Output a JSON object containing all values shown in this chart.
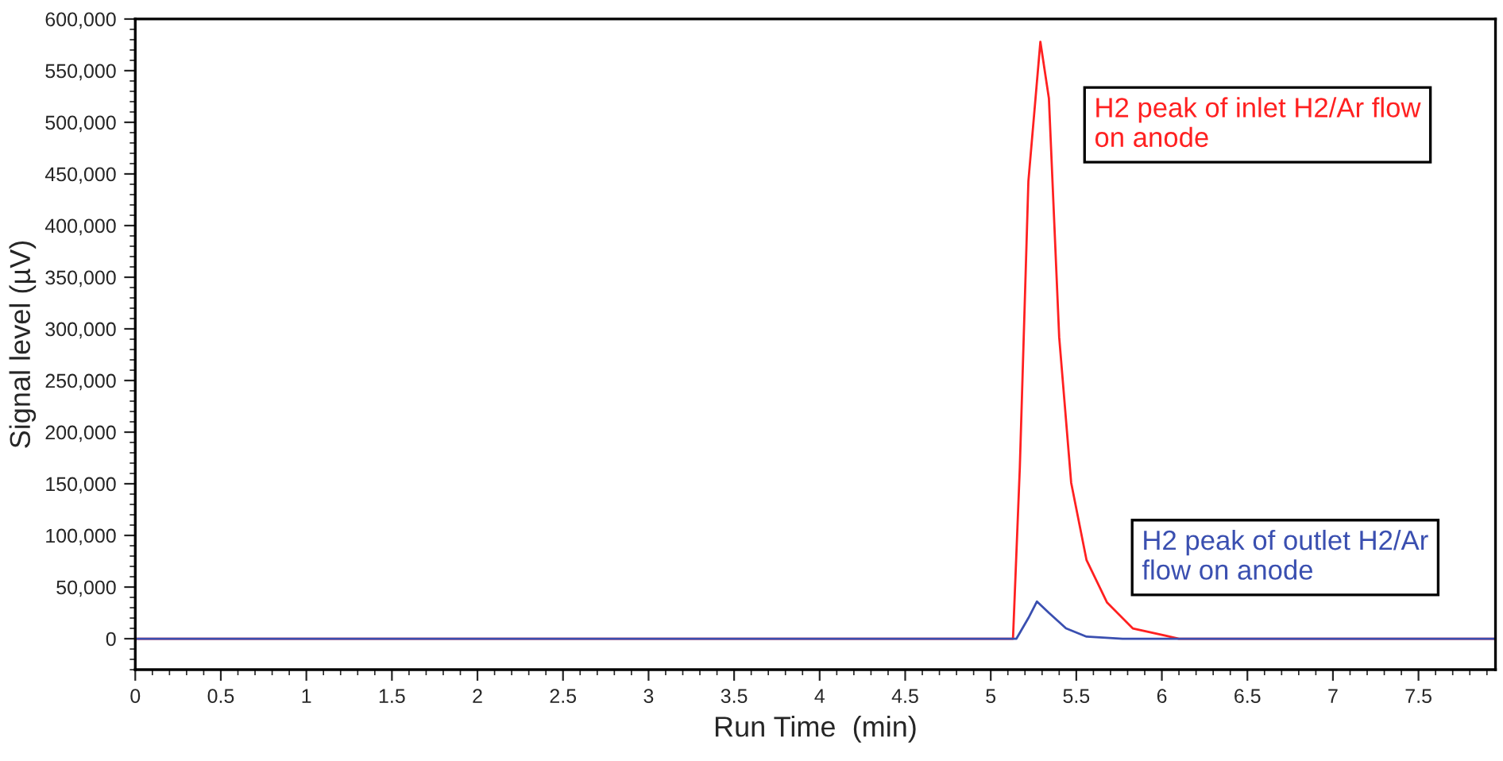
{
  "chart_data": {
    "type": "line",
    "xlabel": "Run Time  (min)",
    "ylabel": "Signal level (µV)",
    "xlim": [
      0,
      7.95
    ],
    "xticks": [
      0,
      0.5,
      1,
      1.5,
      2,
      2.5,
      3,
      3.5,
      4,
      4.5,
      5,
      5.5,
      6,
      6.5,
      7,
      7.5
    ],
    "ylim": [
      -30000,
      600000
    ],
    "yticks": [
      {
        "value": 0,
        "label": "0"
      },
      {
        "value": 50000,
        "label": "50,000"
      },
      {
        "value": 100000,
        "label": "100,000"
      },
      {
        "value": 150000,
        "label": "150,000"
      },
      {
        "value": 200000,
        "label": "200,000"
      },
      {
        "value": 250000,
        "label": "250,000"
      },
      {
        "value": 300000,
        "label": "300,000"
      },
      {
        "value": 350000,
        "label": "350,000"
      },
      {
        "value": 400000,
        "label": "400,000"
      },
      {
        "value": 450000,
        "label": "450,000"
      },
      {
        "value": 500000,
        "label": "500,000"
      },
      {
        "value": 550000,
        "label": "550,000"
      },
      {
        "value": 600000,
        "label": "600,000"
      }
    ],
    "grid": false,
    "legend": false,
    "marker": "none",
    "line_style": "solid",
    "series": [
      {
        "color": "#ff2020",
        "x": [
          0,
          5.0,
          5.13,
          5.17,
          5.22,
          5.29,
          5.34,
          5.4,
          5.47,
          5.56,
          5.68,
          5.83,
          6.02,
          6.1,
          7.95
        ],
        "values": [
          0,
          0,
          0,
          166000,
          443000,
          578000,
          523000,
          292000,
          151000,
          76000,
          35000,
          10000,
          3000,
          0,
          0
        ]
      },
      {
        "color": "#3a4fb0",
        "x": [
          0,
          5.0,
          5.15,
          5.22,
          5.27,
          5.34,
          5.44,
          5.56,
          5.77,
          7.95
        ],
        "values": [
          0,
          0,
          0,
          20000,
          36000,
          25000,
          10000,
          2000,
          0,
          0
        ]
      }
    ],
    "annotations": [
      "H2 peak of inlet H2/Ar flow\non anode",
      "H2 peak of outlet H2/Ar\nflow on anode"
    ]
  }
}
